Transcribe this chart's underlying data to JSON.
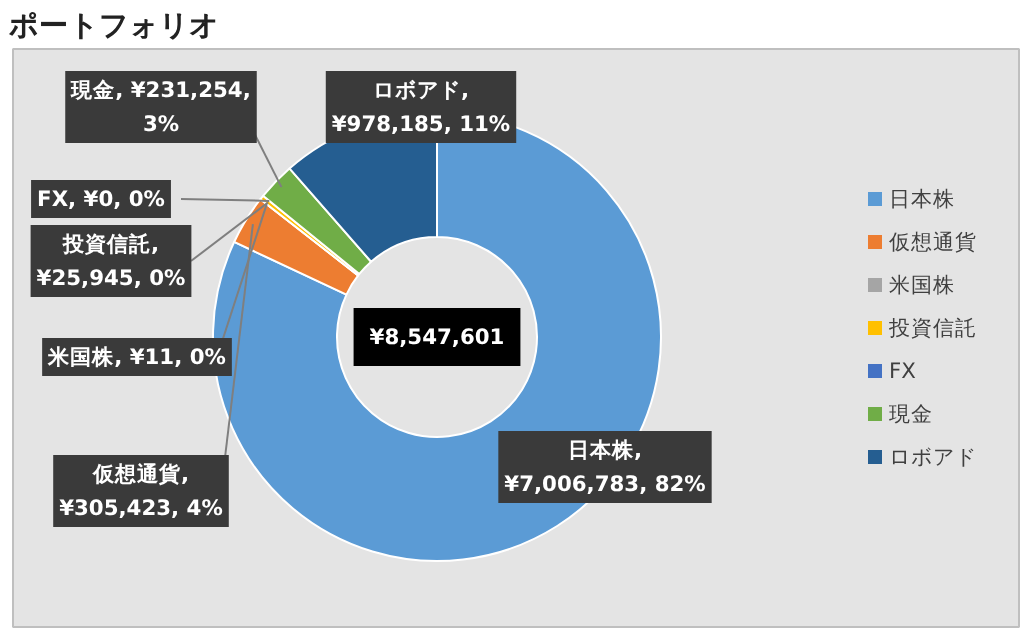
{
  "chart_data": {
    "type": "donut",
    "title": "ポートフォリオ",
    "categories": [
      "日本株",
      "仮想通貨",
      "米国株",
      "投資信託",
      "FX",
      "現金",
      "ロボアド"
    ],
    "values": [
      7006783,
      305423,
      11,
      25945,
      0,
      231254,
      978185
    ],
    "colors": [
      "#5b9bd5",
      "#ed7d31",
      "#a5a5a5",
      "#ffc000",
      "#4472c4",
      "#70ad47",
      "#255e91"
    ],
    "value_labels": [
      "日本株,\n¥7,006,783, 82%",
      "仮想通貨,\n¥305,423, 4%",
      "米国株, ¥11, 0%",
      "投資信託,\n¥25,945, 0%",
      "FX, ¥0, 0%",
      "現金, ¥231,254,\n3%",
      "ロボアド,\n¥978,185, 11%"
    ],
    "annotations": [
      "¥8,547,601"
    ],
    "legend": "right"
  }
}
